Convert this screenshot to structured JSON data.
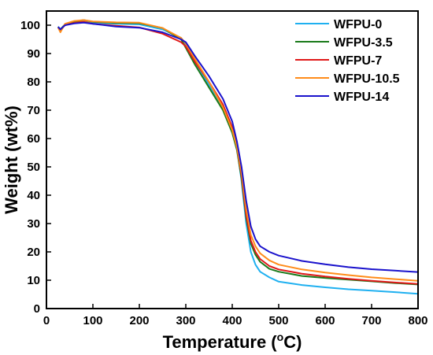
{
  "chart_data": {
    "type": "line",
    "xlabel_main": "Temperature (",
    "xlabel_sup": "o",
    "xlabel_tail": "C)",
    "ylabel": "Weight (wt%)",
    "xlim": [
      0,
      800
    ],
    "ylim": [
      0,
      105
    ],
    "x_ticks": [
      "0",
      "100",
      "200",
      "300",
      "400",
      "500",
      "600",
      "700",
      "800"
    ],
    "y_ticks": [
      "0",
      "10",
      "20",
      "30",
      "40",
      "50",
      "60",
      "70",
      "80",
      "90",
      "100"
    ],
    "legend_position": "top-right",
    "grid": false,
    "series": [
      {
        "name": "WFPU-0",
        "color": "#1fb0f0",
        "points": [
          [
            25,
            99.5
          ],
          [
            30,
            98.5
          ],
          [
            40,
            100.2
          ],
          [
            60,
            101
          ],
          [
            80,
            101.5
          ],
          [
            100,
            101
          ],
          [
            150,
            100.5
          ],
          [
            200,
            100.3
          ],
          [
            250,
            98.5
          ],
          [
            290,
            95.5
          ],
          [
            300,
            93
          ],
          [
            320,
            87
          ],
          [
            350,
            79
          ],
          [
            380,
            71
          ],
          [
            400,
            64
          ],
          [
            410,
            57
          ],
          [
            420,
            45
          ],
          [
            430,
            30
          ],
          [
            440,
            20
          ],
          [
            450,
            15.5
          ],
          [
            460,
            13
          ],
          [
            480,
            11
          ],
          [
            500,
            9.5
          ],
          [
            550,
            8.3
          ],
          [
            600,
            7.5
          ],
          [
            650,
            6.8
          ],
          [
            700,
            6.3
          ],
          [
            750,
            5.8
          ],
          [
            800,
            5.2
          ]
        ]
      },
      {
        "name": "WFPU-3.5",
        "color": "#1a7a1a",
        "points": [
          [
            25,
            99.3
          ],
          [
            30,
            98.5
          ],
          [
            40,
            100.3
          ],
          [
            60,
            101.2
          ],
          [
            80,
            101.8
          ],
          [
            100,
            101.2
          ],
          [
            150,
            100.8
          ],
          [
            200,
            100.7
          ],
          [
            250,
            99
          ],
          [
            290,
            95
          ],
          [
            300,
            92
          ],
          [
            320,
            86
          ],
          [
            350,
            78
          ],
          [
            380,
            70
          ],
          [
            400,
            62
          ],
          [
            410,
            56
          ],
          [
            420,
            46
          ],
          [
            430,
            32
          ],
          [
            440,
            23
          ],
          [
            450,
            19
          ],
          [
            460,
            16.5
          ],
          [
            480,
            14
          ],
          [
            500,
            13
          ],
          [
            550,
            11.5
          ],
          [
            600,
            10.8
          ],
          [
            650,
            10.2
          ],
          [
            700,
            9.6
          ],
          [
            750,
            9
          ],
          [
            800,
            8.5
          ]
        ]
      },
      {
        "name": "WFPU-7",
        "color": "#e01818",
        "points": [
          [
            25,
            99.4
          ],
          [
            30,
            98.4
          ],
          [
            40,
            100
          ],
          [
            60,
            100.8
          ],
          [
            80,
            101.2
          ],
          [
            100,
            100.5
          ],
          [
            150,
            99.8
          ],
          [
            200,
            99.2
          ],
          [
            250,
            97
          ],
          [
            290,
            94
          ],
          [
            300,
            92.5
          ],
          [
            320,
            87
          ],
          [
            350,
            80
          ],
          [
            380,
            72
          ],
          [
            400,
            64
          ],
          [
            410,
            57
          ],
          [
            420,
            47
          ],
          [
            430,
            33
          ],
          [
            440,
            24
          ],
          [
            450,
            20
          ],
          [
            460,
            17.5
          ],
          [
            480,
            15
          ],
          [
            500,
            13.8
          ],
          [
            550,
            12.3
          ],
          [
            600,
            11.3
          ],
          [
            650,
            10.5
          ],
          [
            700,
            9.8
          ],
          [
            750,
            9.2
          ],
          [
            800,
            8.7
          ]
        ]
      },
      {
        "name": "WFPU-10.5",
        "color": "#ff8c1a",
        "points": [
          [
            25,
            99.2
          ],
          [
            30,
            97.5
          ],
          [
            40,
            100.5
          ],
          [
            60,
            101.5
          ],
          [
            80,
            101.8
          ],
          [
            100,
            101.3
          ],
          [
            150,
            101
          ],
          [
            200,
            100.9
          ],
          [
            250,
            99
          ],
          [
            290,
            95.5
          ],
          [
            300,
            93.5
          ],
          [
            320,
            88
          ],
          [
            350,
            80
          ],
          [
            380,
            71
          ],
          [
            400,
            63
          ],
          [
            410,
            57
          ],
          [
            420,
            48
          ],
          [
            430,
            35
          ],
          [
            440,
            26
          ],
          [
            450,
            22
          ],
          [
            460,
            19.5
          ],
          [
            480,
            17
          ],
          [
            500,
            15.5
          ],
          [
            550,
            13.8
          ],
          [
            600,
            12.7
          ],
          [
            650,
            11.8
          ],
          [
            700,
            11
          ],
          [
            750,
            10.4
          ],
          [
            800,
            9.8
          ]
        ]
      },
      {
        "name": "WFPU-14",
        "color": "#1a12cc",
        "points": [
          [
            25,
            99.4
          ],
          [
            30,
            98.5
          ],
          [
            40,
            100
          ],
          [
            60,
            100.6
          ],
          [
            80,
            100.9
          ],
          [
            100,
            100.5
          ],
          [
            150,
            99.5
          ],
          [
            200,
            99.1
          ],
          [
            250,
            97.5
          ],
          [
            290,
            95
          ],
          [
            300,
            94
          ],
          [
            320,
            89
          ],
          [
            350,
            82
          ],
          [
            380,
            74
          ],
          [
            400,
            66
          ],
          [
            410,
            59
          ],
          [
            420,
            50
          ],
          [
            430,
            38
          ],
          [
            440,
            29
          ],
          [
            450,
            24.5
          ],
          [
            460,
            22
          ],
          [
            480,
            20
          ],
          [
            500,
            18.7
          ],
          [
            550,
            16.8
          ],
          [
            600,
            15.6
          ],
          [
            650,
            14.6
          ],
          [
            700,
            13.9
          ],
          [
            750,
            13.4
          ],
          [
            800,
            12.9
          ]
        ]
      }
    ]
  }
}
